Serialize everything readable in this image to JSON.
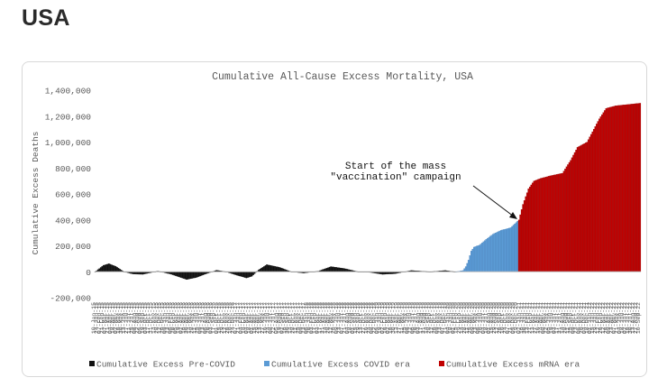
{
  "page": {
    "heading": "USA"
  },
  "annotation": {
    "line1": "Start of the mass",
    "line2": "\"vaccination\" campaign"
  },
  "colors": {
    "pre_covid": "#111111",
    "covid_era": "#5b9bd5",
    "mrna_era": "#c00000",
    "axis": "#bfbfbf",
    "text": "#595959"
  },
  "chart_data": {
    "type": "bar",
    "title": "Cumulative All-Cause Excess Mortality, USA",
    "xlabel": "",
    "ylabel": "Cumulative Excess Deaths",
    "ylim": [
      -200000,
      1400000
    ],
    "yticks": [
      -200000,
      0,
      200000,
      400000,
      600000,
      800000,
      1000000,
      1200000,
      1400000
    ],
    "ytick_labels": [
      "-200,000",
      "0",
      "200,000",
      "400,000",
      "600,000",
      "800,000",
      "1,000,000",
      "1,200,000",
      "1,400,000"
    ],
    "grid": false,
    "legend_position": "bottom",
    "x_range": [
      "2015-01-10",
      "2022-09-10"
    ],
    "x_tick_format": "DD-Mon-YY",
    "x_tick_step_weeks": 2,
    "series": [
      {
        "name": "Cumulative Excess Pre-COVID",
        "points": [
          [
            "2015-01-10",
            0
          ],
          [
            "2015-02-21",
            50000
          ],
          [
            "2015-03-21",
            62000
          ],
          [
            "2015-04-25",
            42000
          ],
          [
            "2015-06-06",
            0
          ],
          [
            "2015-07-25",
            -18000
          ],
          [
            "2015-09-12",
            -20000
          ],
          [
            "2015-11-28",
            5000
          ],
          [
            "2016-02-06",
            -20000
          ],
          [
            "2016-04-23",
            -60000
          ],
          [
            "2016-06-11",
            -45000
          ],
          [
            "2016-08-13",
            -10000
          ],
          [
            "2016-09-24",
            12000
          ],
          [
            "2016-11-12",
            0
          ],
          [
            "2017-01-14",
            -30000
          ],
          [
            "2017-02-25",
            -48000
          ],
          [
            "2017-03-25",
            -35000
          ],
          [
            "2017-04-29",
            15000
          ],
          [
            "2017-06-10",
            55000
          ],
          [
            "2017-08-12",
            35000
          ],
          [
            "2017-10-14",
            0
          ],
          [
            "2017-12-16",
            -10000
          ],
          [
            "2018-03-03",
            5000
          ],
          [
            "2018-05-05",
            40000
          ],
          [
            "2018-07-14",
            25000
          ],
          [
            "2018-09-22",
            0
          ],
          [
            "2018-11-24",
            -5000
          ],
          [
            "2019-01-26",
            -20000
          ],
          [
            "2019-03-30",
            -15000
          ],
          [
            "2019-06-22",
            10000
          ],
          [
            "2019-09-28",
            0
          ],
          [
            "2019-12-14",
            10000
          ],
          [
            "2020-02-01",
            0
          ]
        ]
      },
      {
        "name": "Cumulative Excess COVID era",
        "points": [
          [
            "2020-02-08",
            0
          ],
          [
            "2020-03-14",
            10000
          ],
          [
            "2020-03-28",
            40000
          ],
          [
            "2020-04-11",
            90000
          ],
          [
            "2020-04-25",
            160000
          ],
          [
            "2020-05-09",
            190000
          ],
          [
            "2020-06-06",
            205000
          ],
          [
            "2020-07-11",
            250000
          ],
          [
            "2020-08-15",
            290000
          ],
          [
            "2020-09-26",
            320000
          ],
          [
            "2020-11-14",
            340000
          ],
          [
            "2020-12-19",
            390000
          ]
        ]
      },
      {
        "name": "Cumulative Excess mRNA era",
        "points": [
          [
            "2020-12-26",
            400000
          ],
          [
            "2021-01-16",
            520000
          ],
          [
            "2021-02-13",
            640000
          ],
          [
            "2021-03-13",
            700000
          ],
          [
            "2021-04-17",
            720000
          ],
          [
            "2021-06-05",
            740000
          ],
          [
            "2021-08-07",
            760000
          ],
          [
            "2021-09-18",
            860000
          ],
          [
            "2021-10-23",
            960000
          ],
          [
            "2021-12-11",
            1000000
          ],
          [
            "2022-01-08",
            1080000
          ],
          [
            "2022-02-12",
            1180000
          ],
          [
            "2022-03-19",
            1260000
          ],
          [
            "2022-05-07",
            1280000
          ],
          [
            "2022-07-09",
            1290000
          ],
          [
            "2022-09-10",
            1300000
          ]
        ]
      }
    ]
  }
}
